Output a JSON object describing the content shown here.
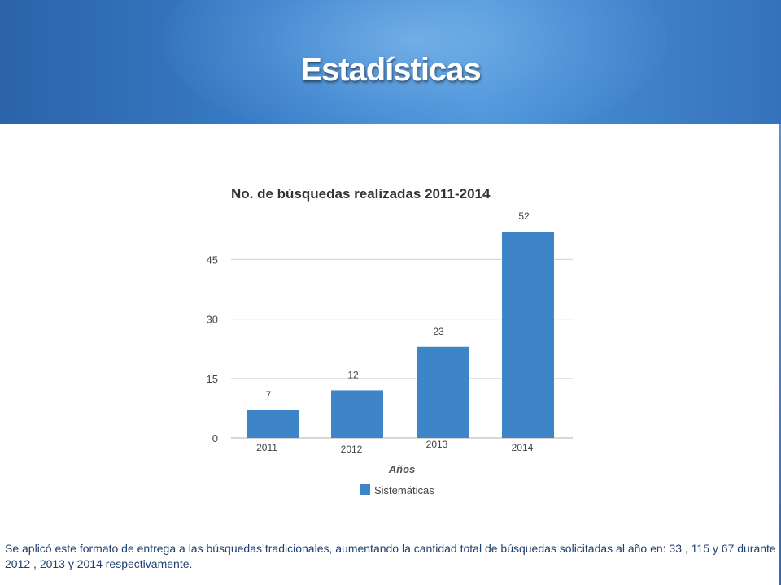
{
  "slide": {
    "title": "Estadísticas",
    "caption": "Se aplicó este  formato de entrega a las búsquedas tradicionales, aumentando la cantidad total de  búsquedas solicitadas al año en: 33 , 115 y 67 durante 2012 , 2013 y 2014 respectivamente."
  },
  "colors": {
    "bar": "#3d85c6",
    "header": "#3a7fcb",
    "grid": "#d9d9d9",
    "text": "#444444"
  },
  "chart_data": {
    "type": "bar",
    "title": "No. de búsquedas realizadas 2011-2014",
    "xlabel": "Años",
    "ylabel": "",
    "categories": [
      "2011",
      "2012",
      "2013",
      "2014"
    ],
    "series": [
      {
        "name": "Sistemáticas",
        "values": [
          7,
          12,
          23,
          52
        ]
      }
    ],
    "data_labels": [
      "7",
      "12",
      "23",
      "52"
    ],
    "y_ticks": [
      "0",
      "15",
      "30",
      "45"
    ],
    "ylim": [
      0,
      53
    ],
    "grid": true,
    "legend": "bottom"
  }
}
